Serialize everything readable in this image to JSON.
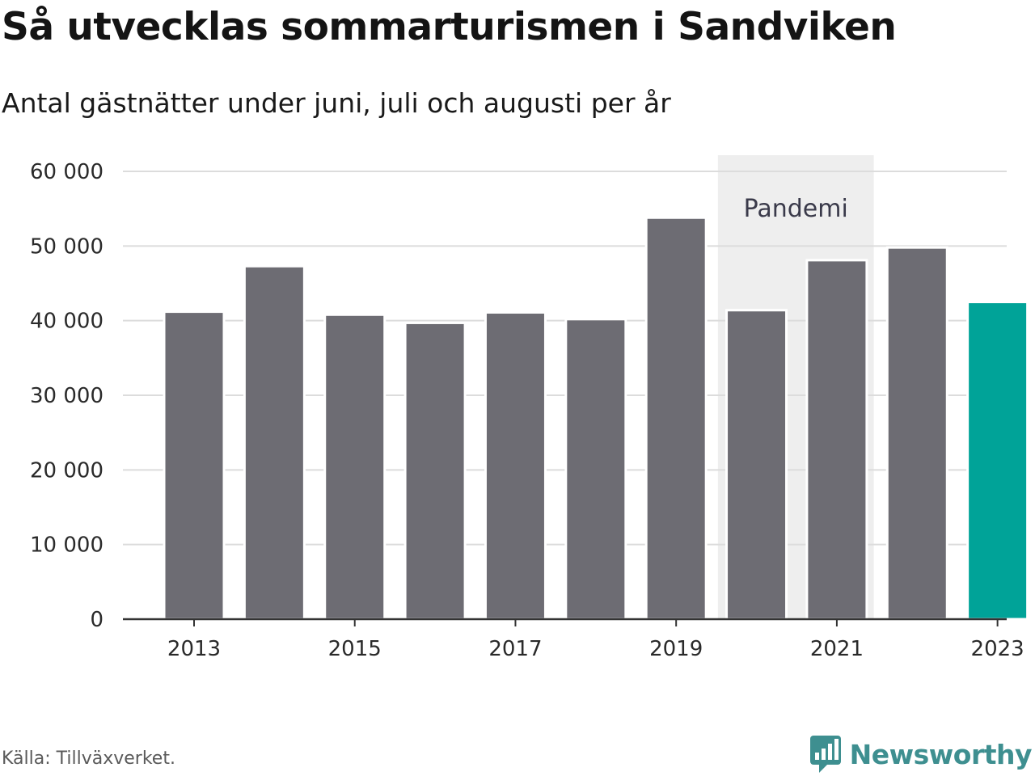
{
  "header": {
    "title": "Så utvecklas sommarturismen i Sandviken",
    "subtitle": "Antal gästnätter under juni, juli och augusti per år"
  },
  "footer": {
    "source": "Källa: Tillväxverket.",
    "brand": "Newsworthy"
  },
  "colors": {
    "bar": "#6d6c73",
    "highlight": "#00a398",
    "annotation_bg": "#eeeeee",
    "grid": "#dcdcdc",
    "axis": "#333333",
    "brand": "#3e8f90"
  },
  "chart_data": {
    "type": "bar",
    "categories": [
      "2013",
      "2014",
      "2015",
      "2016",
      "2017",
      "2018",
      "2019",
      "2020",
      "2021",
      "2022",
      "2023"
    ],
    "values": [
      41200,
      47300,
      40800,
      39700,
      41100,
      40200,
      53800,
      41400,
      48100,
      49800,
      42500
    ],
    "highlight_category": "2023",
    "x_tick_labels": [
      "2013",
      "2015",
      "2017",
      "2019",
      "2021",
      "2023"
    ],
    "y_ticks": [
      0,
      10000,
      20000,
      30000,
      40000,
      50000,
      60000
    ],
    "y_tick_labels": [
      "0",
      "10 000",
      "20 000",
      "30 000",
      "40 000",
      "50 000",
      "60 000"
    ],
    "ylim": [
      0,
      60000
    ],
    "grid": true,
    "annotation": {
      "label": "Pandemi",
      "from": "2020",
      "to": "2021"
    }
  }
}
